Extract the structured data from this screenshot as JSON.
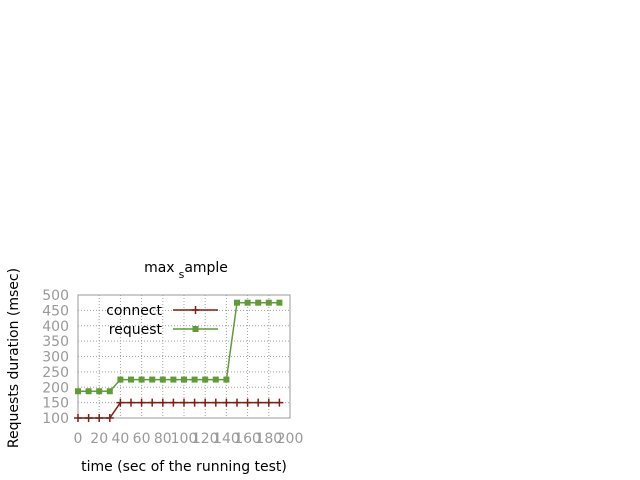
{
  "chart_data": {
    "type": "line",
    "title": "max",
    "title_subscript": "s",
    "title_tail": "ample",
    "xlabel": "time (sec of the running test)",
    "ylabel": "Requests duration (msec)",
    "xlim": [
      0,
      200
    ],
    "ylim": [
      100,
      500
    ],
    "xticks": [
      "0",
      "20",
      "40",
      "60",
      "80",
      "100",
      "120",
      "140",
      "160",
      "180",
      "200"
    ],
    "yticks": [
      "100",
      "150",
      "200",
      "250",
      "300",
      "350",
      "400",
      "450",
      "500"
    ],
    "grid": true,
    "legend_position": "top-left",
    "x": [
      0,
      10,
      20,
      30,
      40,
      50,
      60,
      70,
      80,
      90,
      100,
      110,
      120,
      130,
      140,
      150,
      160,
      170,
      180,
      190
    ],
    "series": [
      {
        "name": "connect",
        "color": "#7f1d10",
        "marker": "plus",
        "values": [
          100,
          100,
          100,
          100,
          150,
          150,
          150,
          150,
          150,
          150,
          150,
          150,
          150,
          150,
          150,
          150,
          150,
          150,
          150,
          150
        ]
      },
      {
        "name": "request",
        "color": "#5e9c35",
        "marker": "square",
        "values": [
          187,
          187,
          187,
          187,
          225,
          225,
          225,
          225,
          225,
          225,
          225,
          225,
          225,
          225,
          225,
          475,
          475,
          475,
          475,
          475
        ]
      }
    ]
  }
}
